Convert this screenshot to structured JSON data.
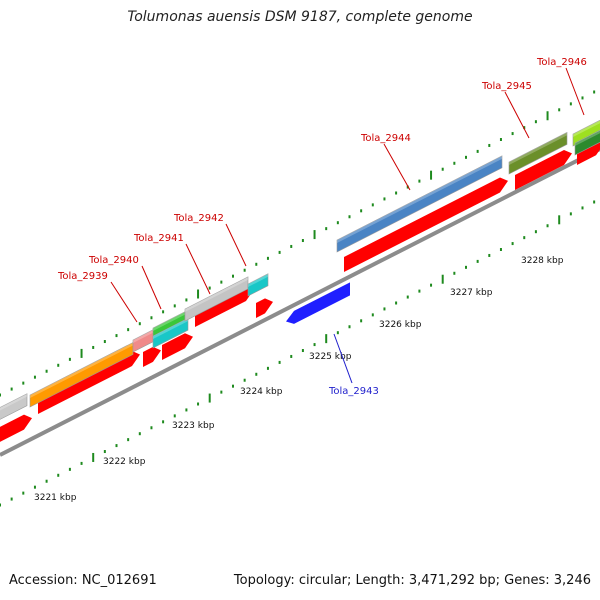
{
  "title": "Tolumonas auensis DSM 9187, complete genome",
  "footer": {
    "accession": "Accession: NC_012691",
    "summary": "Topology: circular; Length: 3,471,292 bp; Genes: 3,246"
  },
  "colors": {
    "backbone": "#8c8c8c",
    "tick": "#1e8a1e",
    "cds": "#ff0000",
    "reverse": "#1f1fff",
    "label_forward": "#cc0000",
    "label_reverse": "#1f1fcc"
  },
  "scale_labels": [
    "3221 kbp",
    "3222 kbp",
    "3223 kbp",
    "3224 kbp",
    "3225 kbp",
    "3226 kbp",
    "3227 kbp",
    "3228 kbp"
  ],
  "genes": [
    {
      "label": "Tola_2939",
      "strand": "forward"
    },
    {
      "label": "Tola_2940",
      "strand": "forward"
    },
    {
      "label": "Tola_2941",
      "strand": "forward"
    },
    {
      "label": "Tola_2942",
      "strand": "forward"
    },
    {
      "label": "Tola_2943",
      "strand": "reverse"
    },
    {
      "label": "Tola_2944",
      "strand": "forward"
    },
    {
      "label": "Tola_2945",
      "strand": "forward"
    },
    {
      "label": "Tola_2946",
      "strand": "forward"
    }
  ]
}
